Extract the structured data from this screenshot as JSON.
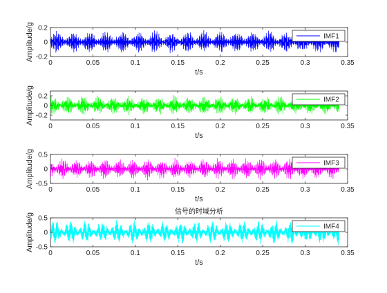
{
  "figure": {
    "title": "信号的时域分析"
  },
  "chart_data": [
    {
      "type": "line",
      "series": [
        {
          "name": "IMF1",
          "color": "#0000ff",
          "amplitude_range": [
            -0.17,
            0.17
          ]
        }
      ],
      "xlabel": "t/s",
      "ylabel": "Amplitude/g",
      "xlim": [
        0,
        0.35
      ],
      "ylim": [
        -0.2,
        0.2
      ],
      "xticks": [
        "0",
        "0.05",
        "0.1",
        "0.15",
        "0.2",
        "0.25",
        "0.3",
        "0.35"
      ],
      "yticks": [
        "-0.2",
        "0",
        "0.2"
      ],
      "signal_span_s": [
        0,
        0.34
      ],
      "legend": "top-right",
      "grid": false
    },
    {
      "type": "line",
      "series": [
        {
          "name": "IMF2",
          "color": "#00ff00",
          "amplitude_range": [
            -0.22,
            0.22
          ]
        }
      ],
      "xlabel": "t/s",
      "ylabel": "Amplitude/g",
      "xlim": [
        0,
        0.35
      ],
      "ylim": [
        -0.3,
        0.3
      ],
      "xticks": [
        "0",
        "0.05",
        "0.1",
        "0.15",
        "0.2",
        "0.25",
        "0.3",
        "0.35"
      ],
      "yticks": [
        "-0.2",
        "0",
        "0.2"
      ],
      "signal_span_s": [
        0,
        0.34
      ],
      "legend": "top-right",
      "grid": false
    },
    {
      "type": "line",
      "series": [
        {
          "name": "IMF3",
          "color": "#ff00ff",
          "amplitude_range": [
            -0.4,
            0.4
          ]
        }
      ],
      "xlabel": "t/s",
      "ylabel": "Amplitude/g",
      "xlim": [
        0,
        0.35
      ],
      "ylim": [
        -0.5,
        0.5
      ],
      "xticks": [
        "0",
        "0.05",
        "0.1",
        "0.15",
        "0.2",
        "0.25",
        "0.3",
        "0.35"
      ],
      "yticks": [
        "-0.5",
        "0",
        "0.5"
      ],
      "signal_span_s": [
        0,
        0.34
      ],
      "legend": "top-right",
      "grid": false
    },
    {
      "type": "line",
      "series": [
        {
          "name": "IMF4",
          "color": "#00ffff",
          "amplitude_range": [
            -0.45,
            0.45
          ]
        }
      ],
      "xlabel": "t/s",
      "ylabel": "Amplitude/g",
      "xlim": [
        0,
        0.35
      ],
      "ylim": [
        -0.5,
        0.5
      ],
      "xticks": [
        "0",
        "0.05",
        "0.1",
        "0.15",
        "0.2",
        "0.25",
        "0.3",
        "0.35"
      ],
      "yticks": [
        "-0.5",
        "0",
        "0.5"
      ],
      "signal_span_s": [
        0,
        0.34
      ],
      "legend": "top-right",
      "grid": false
    }
  ]
}
